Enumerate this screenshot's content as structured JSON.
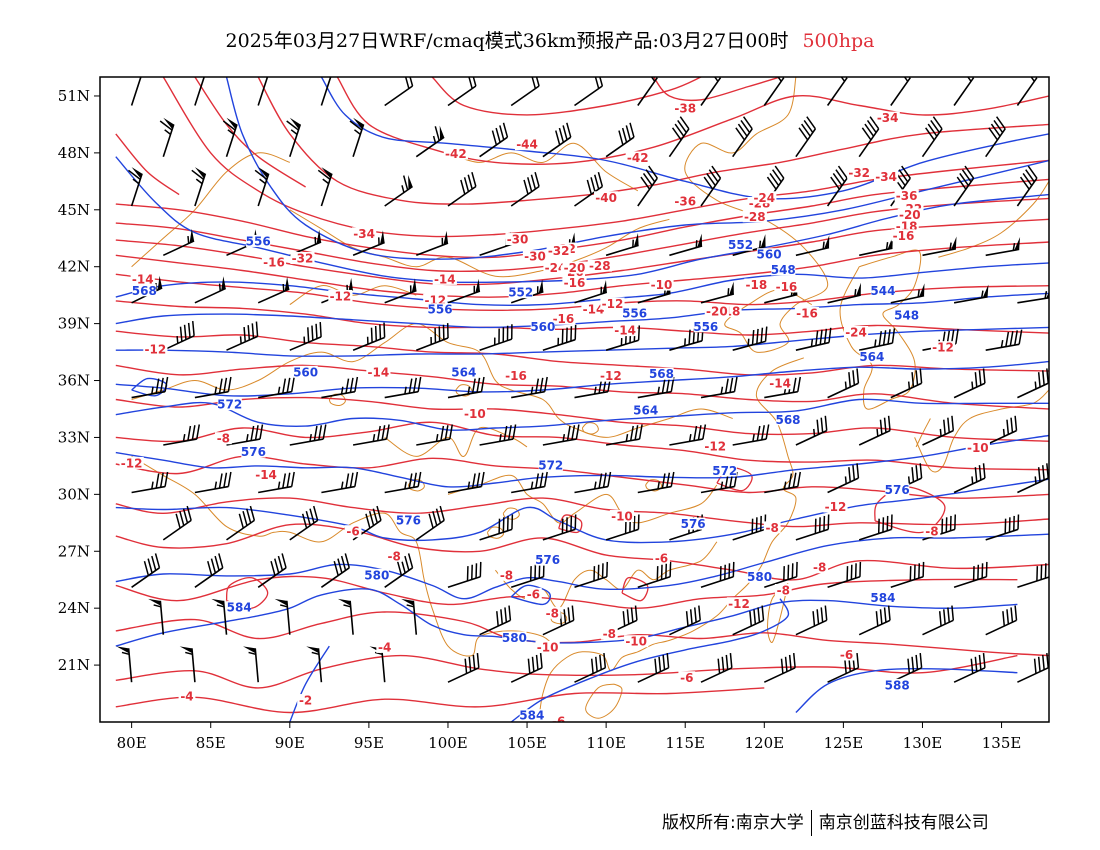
{
  "title": {
    "main": "2025年03月27日WRF/cmaq模式36km预报产品:03月27日00时",
    "level": "500hpa",
    "level_color": "#e0303a"
  },
  "map": {
    "projection": "lat-lon",
    "lon_range": [
      78,
      138
    ],
    "lat_range": [
      18,
      52
    ],
    "x_ticks": [
      "80E",
      "85E",
      "90E",
      "95E",
      "100E",
      "105E",
      "110E",
      "115E",
      "120E",
      "125E",
      "130E",
      "135E"
    ],
    "y_ticks": [
      "51N",
      "48N",
      "45N",
      "42N",
      "39N",
      "36N",
      "33N",
      "30N",
      "27N",
      "24N",
      "21N"
    ],
    "colors": {
      "height": "#2244dd",
      "temperature": "#e0303a",
      "coastline": "#d98a2b",
      "barb": "#000000"
    },
    "height_labels": [
      "556",
      "568",
      "556",
      "552",
      "560",
      "556",
      "552",
      "560",
      "548",
      "544",
      "548",
      "556",
      "560",
      "564",
      "568",
      "564",
      "564",
      "572",
      "568",
      "576",
      "572",
      "572",
      "576",
      "576",
      "576",
      "576",
      "580",
      "580",
      "584",
      "584",
      "580",
      "588",
      "584"
    ],
    "temperature_labels": [
      "-42",
      "-38",
      "-34",
      "-44",
      "-42",
      "-32",
      "-40",
      "-36",
      "-28",
      "-24",
      "-34",
      "-36",
      "-22",
      "-20",
      "-18",
      "-16",
      "-30",
      "-32",
      "-34",
      "-28",
      "-30",
      "-32",
      "-24",
      "-26",
      "-28",
      "-20",
      "-18",
      "-16",
      "-16",
      "-14",
      "-12",
      "-16",
      "-14",
      "-18",
      "-16",
      "-12",
      "-14",
      "-12",
      "-14",
      "-12",
      "-10",
      "-8",
      "-12",
      "-10",
      "-12",
      "-14",
      "-12",
      "-10",
      "-8",
      "-6",
      "-8",
      "-8",
      "-6",
      "-8",
      "-8",
      "-6",
      "-8",
      "-8",
      "-12",
      "-10",
      "-8",
      "-10",
      "-6",
      "-6",
      "-6",
      "-4",
      "-4",
      "-2",
      "-16",
      "-14",
      "-12",
      "-14",
      "-16",
      "-20",
      "-24",
      "-32",
      "-12",
      "-10"
    ]
  },
  "footer": {
    "left": "版权所有:南京大学",
    "right": "南京创蓝科技有限公司"
  }
}
